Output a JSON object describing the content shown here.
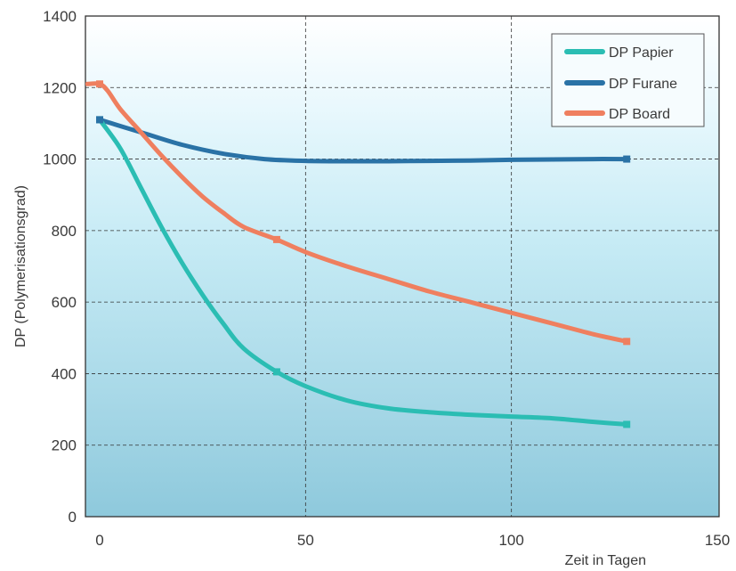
{
  "chart_data": {
    "type": "line",
    "title": "",
    "xlabel": "Zeit in Tagen",
    "ylabel": "DP (Polymerisationsgrad)",
    "xlim": [
      0,
      150
    ],
    "ylim": [
      0,
      1400
    ],
    "xticks": [
      0,
      50,
      100,
      150
    ],
    "yticks": [
      0,
      200,
      400,
      600,
      800,
      1000,
      1200,
      1400
    ],
    "grid": true,
    "legend_position": "top-right",
    "series": [
      {
        "name": "DP Papier",
        "color": "#2bbdb3",
        "x": [
          0,
          5,
          10,
          15,
          20,
          25,
          30,
          35,
          43,
          50,
          60,
          70,
          80,
          90,
          100,
          110,
          120,
          128
        ],
        "y": [
          1110,
          1030,
          920,
          810,
          710,
          620,
          540,
          470,
          405,
          365,
          325,
          303,
          292,
          285,
          280,
          275,
          265,
          258
        ]
      },
      {
        "name": "DP Furane",
        "color": "#2a72a6",
        "x": [
          0,
          10,
          20,
          30,
          40,
          50,
          60,
          70,
          80,
          90,
          100,
          110,
          120,
          128
        ],
        "y": [
          1110,
          1075,
          1040,
          1015,
          1000,
          995,
          994,
          994,
          995,
          996,
          998,
          999,
          1000,
          1000
        ]
      },
      {
        "name": "DP Board",
        "color": "#ef7f5f",
        "x": [
          -3,
          0,
          2,
          5,
          10,
          15,
          20,
          25,
          30,
          35,
          43,
          50,
          60,
          70,
          80,
          90,
          100,
          110,
          120,
          128
        ],
        "y": [
          1210,
          1210,
          1190,
          1140,
          1075,
          1010,
          950,
          895,
          850,
          810,
          775,
          740,
          700,
          665,
          630,
          600,
          570,
          540,
          510,
          490
        ]
      }
    ],
    "markers": [
      {
        "series": 0,
        "x": 0,
        "y": 1110
      },
      {
        "series": 0,
        "x": 43,
        "y": 405
      },
      {
        "series": 0,
        "x": 128,
        "y": 258
      },
      {
        "series": 1,
        "x": 0,
        "y": 1110
      },
      {
        "series": 1,
        "x": 128,
        "y": 1000
      },
      {
        "series": 2,
        "x": 0,
        "y": 1210
      },
      {
        "series": 2,
        "x": 43,
        "y": 775
      },
      {
        "series": 2,
        "x": 128,
        "y": 490
      }
    ]
  }
}
